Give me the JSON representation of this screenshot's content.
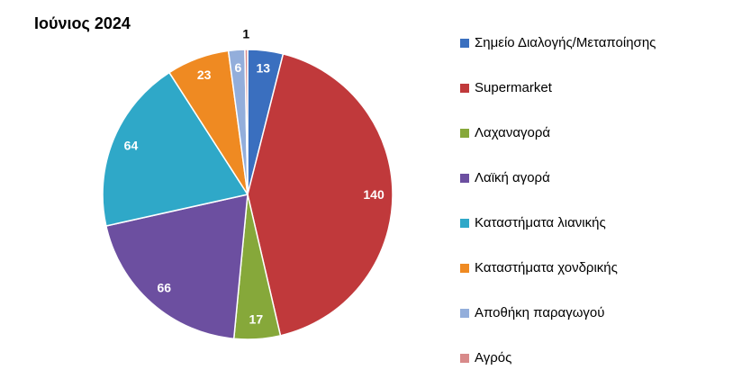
{
  "chart_data": {
    "type": "pie",
    "title": "Ιούνιος 2024",
    "categories": [
      "Σημείο Διαλογής/Μεταποίησης",
      "Supermarket",
      "Λαχαναγορά",
      "Λαϊκή αγορά",
      "Καταστήματα λιανικής",
      "Καταστήματα χονδρικής",
      "Αποθήκη παραγωγού",
      "Αγρός"
    ],
    "values": [
      13,
      140,
      17,
      66,
      64,
      23,
      6,
      1
    ],
    "colors": [
      "#3a6fbf",
      "#c0393b",
      "#86a83a",
      "#6c4fa0",
      "#2fa8c8",
      "#ef8a22",
      "#93aedb",
      "#d88a8a"
    ],
    "legend": "right"
  }
}
